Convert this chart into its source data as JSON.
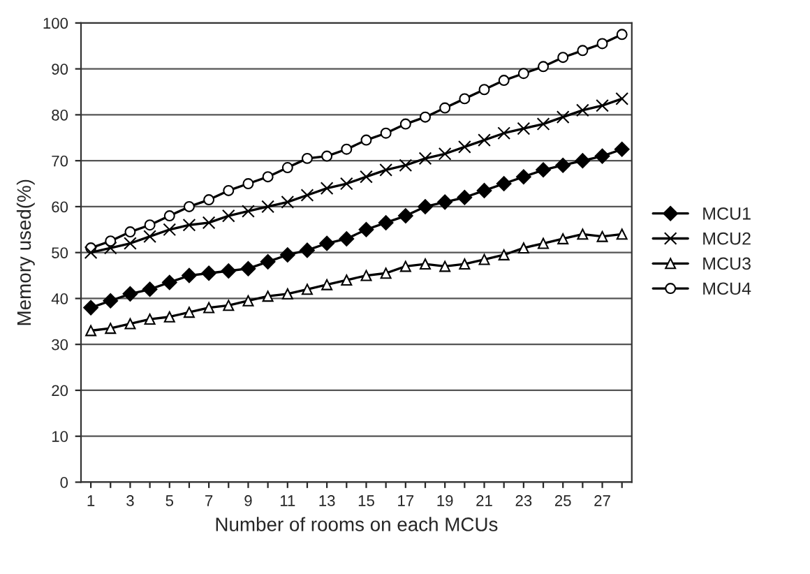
{
  "chart_data": {
    "type": "line",
    "xlabel": "Number of rooms on each MCUs",
    "ylabel": "Memory used(%)",
    "categories": [
      "1",
      null,
      "3",
      null,
      "5",
      null,
      "7",
      null,
      "9",
      null,
      "11",
      null,
      "13",
      null,
      "15",
      null,
      "17",
      null,
      "19",
      null,
      "21",
      null,
      "23",
      null,
      "25",
      null,
      "27",
      null
    ],
    "ylim": [
      0,
      100
    ],
    "yticks": [
      0,
      10,
      20,
      30,
      40,
      50,
      60,
      70,
      80,
      90,
      100
    ],
    "grid": "y",
    "legend": "right",
    "series": [
      {
        "name": "MCU1",
        "color": "#000000",
        "marker": "diamond",
        "values": [
          38,
          39.5,
          41,
          42,
          43.5,
          45,
          45.5,
          46,
          46.5,
          48,
          49.5,
          50.5,
          52,
          53,
          55,
          56.5,
          58,
          60,
          61,
          62,
          63.5,
          65,
          66.5,
          68,
          69,
          70,
          71,
          72.5
        ]
      },
      {
        "name": "MCU2",
        "color": "#000000",
        "marker": "cross",
        "values": [
          50,
          51,
          52,
          53.5,
          55,
          56,
          56.5,
          58,
          59,
          60,
          61,
          62.5,
          64,
          65,
          66.5,
          68,
          69,
          70.5,
          71.5,
          73,
          74.5,
          76,
          77,
          78,
          79.5,
          81,
          82,
          83.5
        ]
      },
      {
        "name": "MCU3",
        "color": "#000000",
        "marker": "triangle",
        "values": [
          33,
          33.5,
          34.5,
          35.5,
          36,
          37,
          38,
          38.5,
          39.5,
          40.5,
          41,
          42,
          43,
          44,
          45,
          45.5,
          47,
          47.5,
          47,
          47.5,
          48.5,
          49.5,
          51,
          52,
          53,
          54,
          53.5,
          54
        ]
      },
      {
        "name": "MCU4",
        "color": "#000000",
        "marker": "circle",
        "values": [
          51,
          52.5,
          54.5,
          56,
          58,
          60,
          61.5,
          63.5,
          65,
          66.5,
          68.5,
          70.5,
          71,
          72.5,
          74.5,
          76,
          78,
          79.5,
          81.5,
          83.5,
          85.5,
          87.5,
          89,
          90.5,
          92.5,
          94,
          95.5,
          97.5
        ]
      }
    ]
  }
}
